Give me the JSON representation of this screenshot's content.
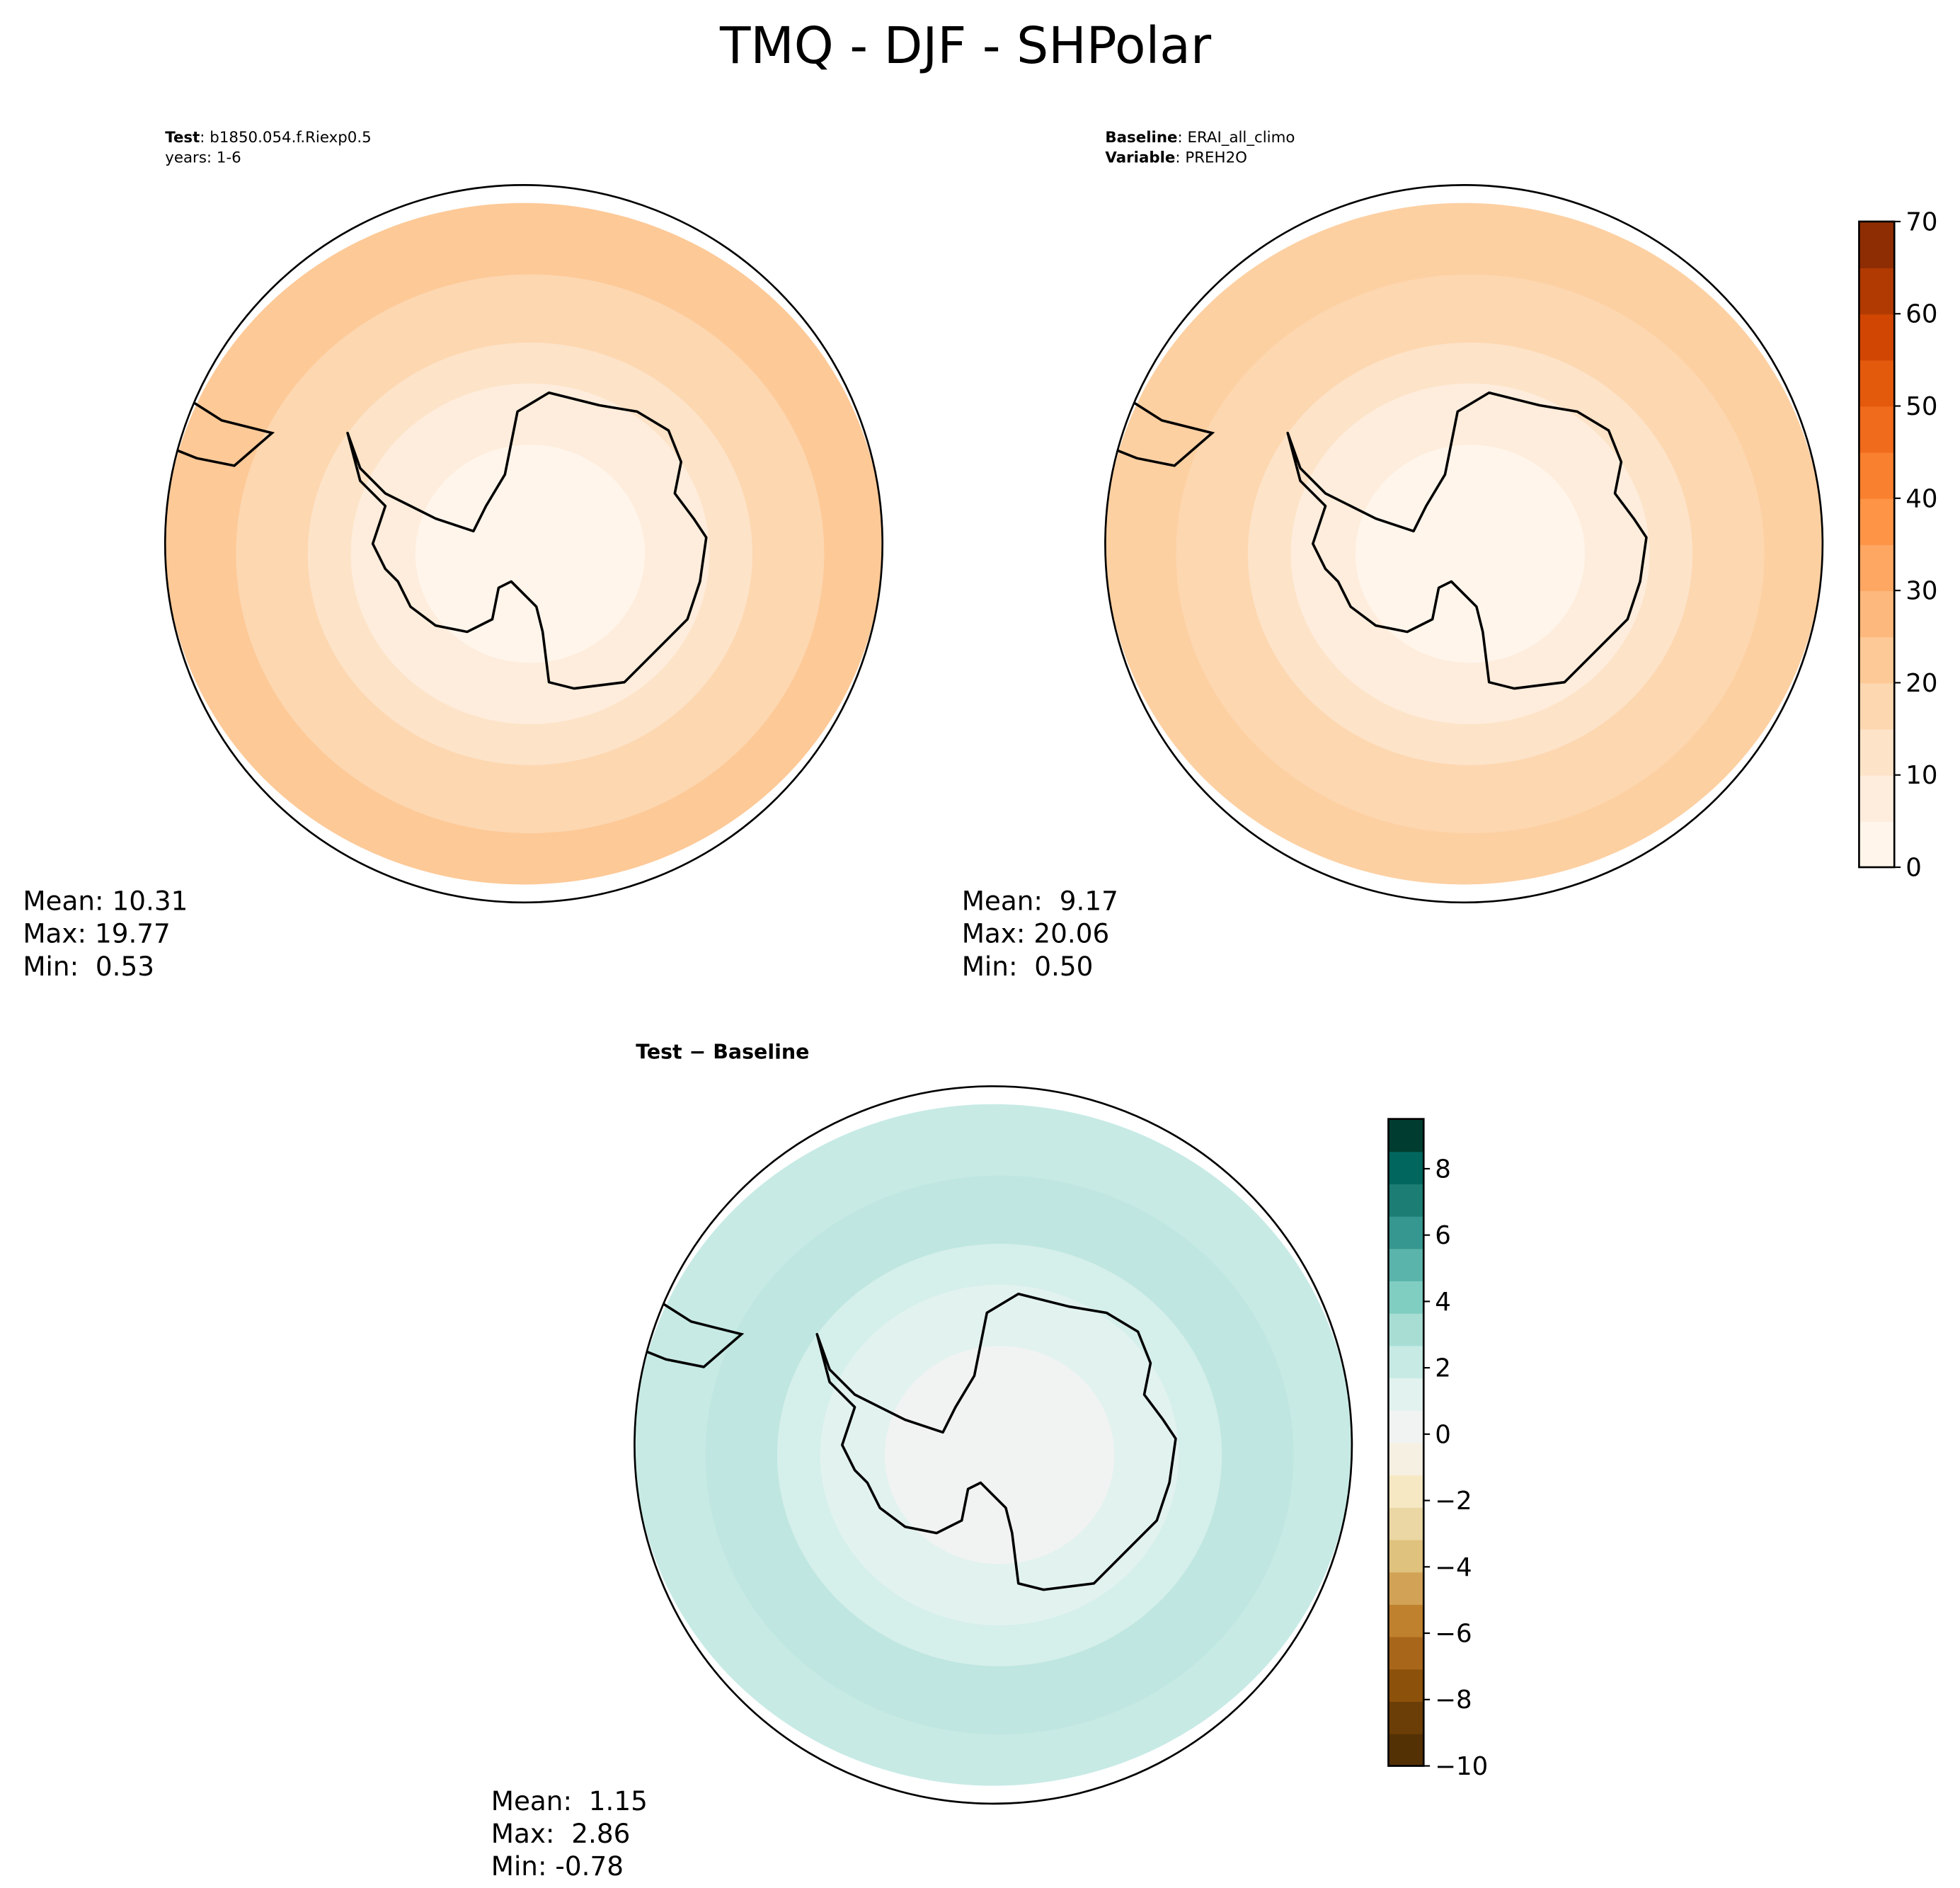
{
  "title": "TMQ - DJF - SHPolar",
  "panels": [
    {
      "header": [
        {
          "bold": "Test",
          "rest": ": b1850.054.f.Riexp0.5"
        },
        {
          "bold": "",
          "rest": "years: 1-6"
        }
      ],
      "stats": [
        "Mean: 10.31",
        "Max: 19.77",
        "Min:  0.53"
      ]
    },
    {
      "header": [
        {
          "bold": "Baseline",
          "rest": ": ERAI_all_climo"
        },
        {
          "bold": "Variable",
          "rest": ": PREH2O"
        }
      ],
      "stats": [
        "Mean:  9.17",
        "Max: 20.06",
        "Min:  0.50"
      ]
    },
    {
      "header": [
        {
          "bold": "Test − Baseline",
          "rest": ""
        }
      ],
      "stats": [
        "Mean:  1.15",
        "Max:  2.86",
        "Min: -0.78"
      ]
    }
  ],
  "colorbars": [
    {
      "range": [
        0,
        70
      ],
      "ticks": [
        0,
        10,
        20,
        30,
        40,
        50,
        60,
        70
      ],
      "colors": [
        "#fff5eb",
        "#feeddc",
        "#fde3c8",
        "#fdd7b0",
        "#fdc997",
        "#fdb87d",
        "#fda762",
        "#fd9446",
        "#f8802f",
        "#f06b1b",
        "#e45a0d",
        "#d14603",
        "#b13a03",
        "#8e2d04"
      ]
    },
    {
      "range": [
        -10,
        9.5
      ],
      "ticks": [
        {
          "value": -10,
          "label": "−10"
        },
        {
          "value": -8,
          "label": "−8"
        },
        {
          "value": -6,
          "label": "−6"
        },
        {
          "value": -4,
          "label": "−4"
        },
        {
          "value": -2,
          "label": "−2"
        },
        0,
        2,
        4,
        6,
        8
      ],
      "colors": [
        "#543005",
        "#6b3e08",
        "#8c510a",
        "#a8661b",
        "#bf812d",
        "#d2a356",
        "#dfc27d",
        "#ebd7a4",
        "#f6e8c3",
        "#f5f0e2",
        "#f1f3f2",
        "#e2f2ef",
        "#c7eae5",
        "#a8ddd4",
        "#80cdc1",
        "#5ab4ab",
        "#35978f",
        "#1b7d74",
        "#01665e",
        "#003c30"
      ]
    }
  ]
}
